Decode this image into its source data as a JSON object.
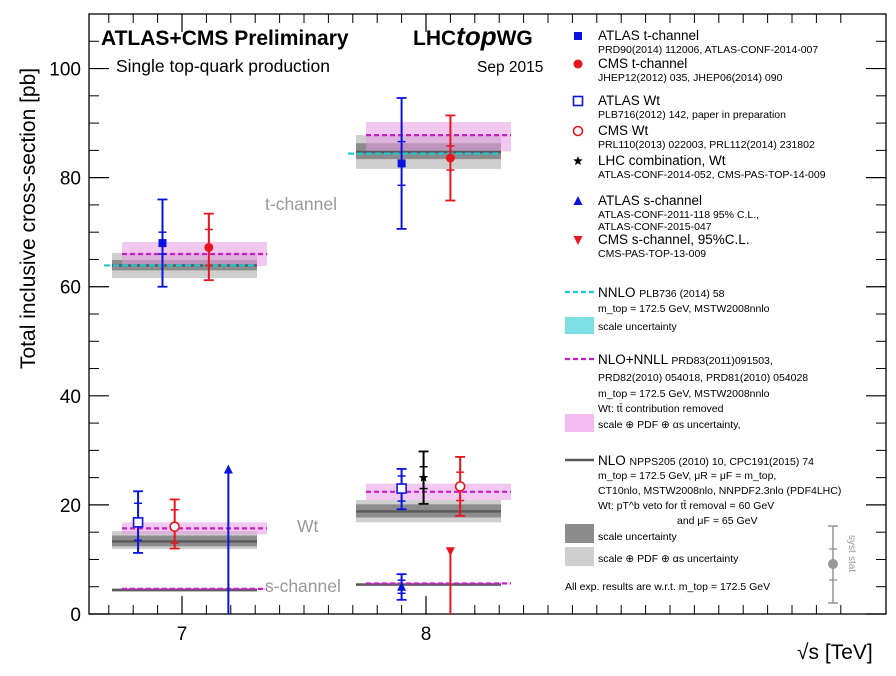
{
  "chart_data": {
    "type": "scatter",
    "header": {
      "title": "ATLAS+CMS Preliminary",
      "subtitle": "Single top-quark production",
      "wg_pre": "LHC",
      "wg_top": "top",
      "wg_post": "WG",
      "date": "Sep 2015"
    },
    "xlabel": "√s [TeV]",
    "ylabel": "Total inclusive cross-section [pb]",
    "ylim": [
      0,
      110
    ],
    "y_ticks": [
      "0",
      "20",
      "40",
      "60",
      "80",
      "100"
    ],
    "x_ticks": [
      "7",
      "8"
    ],
    "channel_labels": [
      "t-channel",
      "Wt",
      "s-channel"
    ],
    "colors": {
      "atlas": "#0a14e0",
      "cms": "#e8141e",
      "nnlo": "#1ec8d2",
      "nnll": "#c81ec8",
      "nlo": "#5a5a5a",
      "lhc": "#000000"
    },
    "theory": [
      {
        "channel": "t",
        "sqrt_s": 7,
        "nlo": 63.9,
        "nlo_scale": [
          63.0,
          64.9
        ],
        "nlo_full": [
          61.6,
          66.2
        ],
        "nnll": 66.0,
        "nnll_band": [
          63.8,
          68.2
        ],
        "nnlo": 63.9
      },
      {
        "channel": "t",
        "sqrt_s": 8,
        "nlo": 84.7,
        "nlo_scale": [
          83.4,
          86.3
        ],
        "nlo_full": [
          81.6,
          87.8
        ],
        "nnll": 87.8,
        "nnll_band": [
          84.8,
          90.2
        ],
        "nnlo": 84.4
      },
      {
        "channel": "Wt",
        "sqrt_s": 7,
        "nlo": 13.3,
        "nlo_scale": [
          12.4,
          14.4
        ],
        "nlo_full": [
          11.9,
          15.2
        ],
        "nnll": 15.7,
        "nnll_band": [
          14.6,
          16.8
        ]
      },
      {
        "channel": "Wt",
        "sqrt_s": 8,
        "nlo": 18.8,
        "nlo_scale": [
          17.7,
          20.1
        ],
        "nlo_full": [
          16.8,
          20.9
        ],
        "nnll": 22.4,
        "nnll_band": [
          20.9,
          23.9
        ]
      },
      {
        "channel": "s",
        "sqrt_s": 7,
        "nlo": 4.4,
        "nlo_scale": [
          4.25,
          4.55
        ],
        "nlo_full": [
          4.1,
          4.7
        ],
        "nnll": 4.6,
        "nnll_band": [
          4.4,
          4.8
        ]
      },
      {
        "channel": "s",
        "sqrt_s": 8,
        "nlo": 5.4,
        "nlo_scale": [
          5.25,
          5.55
        ],
        "nlo_full": [
          5.1,
          5.7
        ],
        "nnll": 5.6,
        "nnll_band": [
          5.4,
          5.8
        ]
      }
    ],
    "measurements": [
      {
        "name": "ATLAS t-channel 7",
        "x": 6.92,
        "y": 68.0,
        "stat": [
          66.0,
          70.0
        ],
        "total": [
          60.0,
          76.0
        ],
        "marker": "square-filled",
        "color": "atlas"
      },
      {
        "name": "CMS t-channel 7",
        "x": 7.11,
        "y": 67.2,
        "stat": [
          63.9,
          70.5
        ],
        "total": [
          61.2,
          73.4
        ],
        "marker": "circle-filled",
        "color": "cms"
      },
      {
        "name": "ATLAS t-channel 8",
        "x": 7.9,
        "y": 82.6,
        "stat": [
          78.6,
          86.6
        ],
        "total": [
          70.6,
          94.6
        ],
        "marker": "square-filled",
        "color": "atlas"
      },
      {
        "name": "CMS t-channel 8",
        "x": 8.1,
        "y": 83.6,
        "stat": [
          81.4,
          85.8
        ],
        "total": [
          75.8,
          91.4
        ],
        "marker": "circle-filled",
        "color": "cms"
      },
      {
        "name": "ATLAS Wt 7",
        "x": 6.82,
        "y": 16.8,
        "stat": [
          13.5,
          20.3
        ],
        "total": [
          11.2,
          22.5
        ],
        "marker": "square-open",
        "color": "atlas"
      },
      {
        "name": "CMS Wt 7",
        "x": 6.97,
        "y": 16.0,
        "stat": [
          13.0,
          19.1
        ],
        "total": [
          12.0,
          21.0
        ],
        "marker": "circle-open",
        "color": "cms"
      },
      {
        "name": "ATLAS Wt 8",
        "x": 7.9,
        "y": 23.0,
        "stat": [
          20.7,
          25.3
        ],
        "total": [
          19.2,
          26.6
        ],
        "marker": "square-open",
        "color": "atlas"
      },
      {
        "name": "LHC combination Wt 8",
        "x": 7.99,
        "y": 25.0,
        "stat": [
          23.0,
          27.0
        ],
        "total": [
          20.2,
          29.8
        ],
        "marker": "star",
        "color": "lhc"
      },
      {
        "name": "CMS Wt 8",
        "x": 8.14,
        "y": 23.4,
        "stat": [
          20.8,
          26.0
        ],
        "total": [
          18.0,
          28.8
        ],
        "marker": "circle-open",
        "color": "cms"
      },
      {
        "name": "ATLAS s-channel 7 limit",
        "x": 7.19,
        "y": 26.5,
        "total": [
          0,
          26.5
        ],
        "marker": "triangle-up",
        "color": "atlas"
      },
      {
        "name": "ATLAS s-channel 8",
        "x": 7.9,
        "y": 5.0,
        "stat": [
          3.8,
          6.2
        ],
        "total": [
          2.6,
          7.3
        ],
        "marker": "triangle-up",
        "color": "atlas"
      },
      {
        "name": "CMS s-channel 8 limit",
        "x": 8.1,
        "y": 11.5,
        "total": [
          0,
          11.5
        ],
        "marker": "triangle-down",
        "color": "cms"
      }
    ],
    "legend": [
      {
        "marker": "square-filled",
        "color": "atlas",
        "label": "ATLAS t-channel",
        "ref": "PRD90(2014) 112006, ATLAS-CONF-2014-007"
      },
      {
        "marker": "circle-filled",
        "color": "cms",
        "label": "CMS t-channel",
        "ref": "JHEP12(2012) 035, JHEP06(2014) 090"
      },
      {
        "marker": "square-open",
        "color": "atlas",
        "label": "ATLAS Wt",
        "ref": "PLB716(2012) 142, paper in preparation"
      },
      {
        "marker": "circle-open",
        "color": "cms",
        "label": "CMS Wt",
        "ref": "PRL110(2013) 022003, PRL112(2014) 231802"
      },
      {
        "marker": "star",
        "color": "lhc",
        "label": "LHC combination,  Wt",
        "ref": "ATLAS-CONF-2014-052, CMS-PAS-TOP-14-009"
      },
      {
        "marker": "triangle-up",
        "color": "atlas",
        "label": "ATLAS s-channel",
        "ref": "ATLAS-CONF-2011-118 95% C.L.,",
        "ref2": "ATLAS-CONF-2015-047"
      },
      {
        "marker": "triangle-down",
        "color": "cms",
        "label": "CMS s-channel, 95%C.L.",
        "ref": "CMS-PAS-TOP-13-009"
      }
    ],
    "theory_legend": {
      "nnlo_label": "NNLO",
      "nnlo_ref": "PLB736 (2014) 58",
      "nnlo_mtop": "m_top = 172.5 GeV, MSTW2008nnlo",
      "nnlo_scale": "scale uncertainty",
      "nnll_label": "NLO+NNLL",
      "nnll_ref": "PRD83(2011)091503,",
      "nnll_ref2": "PRD82(2010) 054018, PRD81(2010) 054028",
      "nnll_mtop": "m_top = 172.5 GeV, MSTW2008nnlo",
      "nnll_wt": "Wt: tt̄ contribution removed",
      "nnll_band": "scale ⊕ PDF ⊕ αs uncertainty,",
      "nlo_label": "NLO",
      "nlo_ref": "NPPS205 (2010) 10, CPC191(2015) 74",
      "nlo_mtop": "m_top = 172.5 GeV, μR = μF = m_top,",
      "nlo_pdf": "CT10nlo, MSTW2008nlo, NNPDF2.3nlo (PDF4LHC)",
      "nlo_wt": "Wt: pT^b veto for tt̄ removal = 60 GeV",
      "nlo_wt2": "and μF = 65 GeV",
      "nlo_scale": "scale uncertainty",
      "nlo_full": "scale ⊕ PDF ⊕ αs uncertainty",
      "footnote": "All exp. results are w.r.t. m_top = 172.5 GeV",
      "syst_label": "syst",
      "stat_label": "stat"
    }
  }
}
